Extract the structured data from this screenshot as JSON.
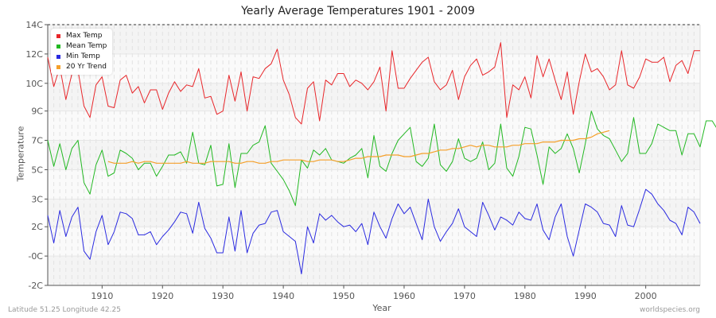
{
  "chart_data": {
    "type": "line",
    "title": "Yearly Average Temperatures 1901 - 2009",
    "xlabel": "Year",
    "ylabel": "Temperature",
    "x_range": [
      1901,
      2009
    ],
    "ylim": [
      -2,
      14
    ],
    "x_ticks": [
      1910,
      1920,
      1930,
      1940,
      1950,
      1960,
      1970,
      1980,
      1990,
      2000
    ],
    "y_ticks": [
      {
        "label": "-2C",
        "value": -2
      },
      {
        "label": "-0C",
        "value": -0.2
      },
      {
        "label": "2C",
        "value": 1.6
      },
      {
        "label": "3C",
        "value": 3.3
      },
      {
        "label": "5C",
        "value": 5.1
      },
      {
        "label": "7C",
        "value": 6.9
      },
      {
        "label": "9C",
        "value": 8.7
      },
      {
        "label": "10C",
        "value": 10.4
      },
      {
        "label": "12C",
        "value": 12.2
      },
      {
        "label": "14C",
        "value": 14
      }
    ],
    "grid": true,
    "legend_position": "top-left",
    "series": [
      {
        "name": "Max Temp",
        "color": "#e8262a",
        "start_year": 1901,
        "values": [
          12.0,
          10.2,
          11.4,
          9.4,
          11.0,
          11.2,
          9.0,
          8.3,
          10.3,
          10.8,
          9.0,
          8.9,
          10.6,
          10.9,
          9.8,
          10.2,
          9.2,
          10.0,
          10.0,
          8.8,
          9.8,
          10.5,
          9.9,
          10.3,
          10.2,
          11.3,
          9.5,
          9.6,
          8.5,
          8.7,
          10.9,
          9.3,
          11.1,
          8.7,
          10.8,
          10.7,
          11.3,
          11.6,
          12.5,
          10.6,
          9.7,
          8.3,
          7.9,
          10.1,
          10.5,
          8.1,
          10.6,
          10.3,
          11.0,
          11.0,
          10.2,
          10.6,
          10.4,
          10.0,
          10.5,
          11.4,
          8.7,
          12.4,
          10.1,
          10.1,
          10.7,
          11.2,
          11.7,
          12.0,
          10.5,
          10.0,
          10.3,
          11.2,
          9.4,
          10.8,
          11.5,
          11.9,
          10.9,
          11.1,
          11.4,
          12.9,
          8.3,
          10.3,
          10.0,
          10.8,
          9.5,
          12.1,
          10.8,
          11.9,
          10.6,
          9.4,
          11.1,
          8.5,
          10.5,
          12.2,
          11.1,
          11.3,
          10.8,
          10.0,
          10.3,
          12.4,
          10.3,
          10.1,
          10.8,
          11.9,
          11.7,
          11.7,
          12.0,
          10.5,
          11.5,
          11.8,
          11.0,
          12.4,
          12.4
        ]
      },
      {
        "name": "Mean Temp",
        "color": "#22b822",
        "start_year": 1901,
        "values": [
          6.9,
          5.3,
          6.7,
          5.1,
          6.4,
          6.9,
          4.3,
          3.6,
          5.4,
          6.3,
          4.7,
          4.9,
          6.3,
          6.1,
          5.8,
          5.1,
          5.5,
          5.5,
          4.7,
          5.3,
          6.0,
          6.0,
          6.2,
          5.5,
          7.4,
          5.5,
          5.4,
          6.6,
          4.1,
          4.2,
          6.7,
          4.0,
          6.1,
          6.1,
          6.6,
          6.8,
          7.8,
          5.5,
          5.0,
          4.5,
          3.8,
          2.9,
          5.7,
          5.2,
          6.3,
          6.0,
          6.4,
          5.7,
          5.6,
          5.5,
          5.8,
          6.0,
          6.4,
          4.6,
          7.2,
          5.3,
          5.0,
          6.1,
          6.9,
          7.3,
          7.7,
          5.6,
          5.3,
          5.8,
          7.9,
          5.4,
          5.0,
          5.6,
          7.0,
          5.8,
          5.6,
          5.8,
          6.8,
          5.1,
          5.5,
          7.9,
          5.2,
          4.7,
          5.9,
          7.7,
          7.6,
          6.0,
          4.2,
          6.5,
          6.1,
          6.4,
          7.3,
          6.4,
          4.9,
          6.7,
          8.7,
          7.6,
          7.2,
          7.0,
          6.3,
          5.6,
          6.1,
          8.3,
          6.1,
          6.1,
          6.7,
          7.9,
          7.7,
          7.5,
          7.5,
          6.0,
          7.3,
          7.3,
          6.5,
          8.1,
          8.1,
          7.5
        ]
      },
      {
        "name": "Min Temp",
        "color": "#2a2ae0",
        "start_year": 1901,
        "values": [
          2.3,
          0.6,
          2.6,
          1.0,
          2.2,
          2.8,
          0.1,
          -0.4,
          1.3,
          2.3,
          0.5,
          1.3,
          2.5,
          2.4,
          2.1,
          1.1,
          1.1,
          1.3,
          0.5,
          1.0,
          1.4,
          1.9,
          2.5,
          2.4,
          1.2,
          3.1,
          1.5,
          0.9,
          0.0,
          0.0,
          2.2,
          0.1,
          2.6,
          0.0,
          1.2,
          1.7,
          1.8,
          2.5,
          2.6,
          1.3,
          1.0,
          0.7,
          -1.3,
          1.6,
          0.6,
          2.4,
          2.0,
          2.3,
          1.9,
          1.6,
          1.7,
          1.3,
          1.8,
          0.5,
          2.5,
          1.6,
          0.9,
          2.1,
          3.0,
          2.4,
          2.8,
          1.8,
          0.8,
          3.3,
          1.6,
          0.7,
          1.3,
          1.8,
          2.7,
          1.6,
          1.3,
          1.0,
          3.1,
          2.3,
          1.4,
          2.2,
          2.0,
          1.7,
          2.5,
          2.1,
          2.0,
          3.0,
          1.4,
          0.8,
          2.2,
          3.0,
          1.0,
          -0.2,
          1.4,
          3.0,
          2.8,
          2.5,
          1.8,
          1.7,
          1.0,
          2.9,
          1.7,
          1.6,
          2.7,
          3.9,
          3.6,
          3.0,
          2.6,
          2.0,
          1.8,
          1.1,
          2.8,
          2.5,
          1.8
        ]
      },
      {
        "name": "20 Yr Trend",
        "color": "#f5a02a",
        "start_year": 1911,
        "values": [
          5.6,
          5.5,
          5.5,
          5.5,
          5.6,
          5.5,
          5.6,
          5.6,
          5.5,
          5.5,
          5.5,
          5.5,
          5.5,
          5.6,
          5.5,
          5.5,
          5.5,
          5.6,
          5.6,
          5.6,
          5.6,
          5.5,
          5.5,
          5.6,
          5.6,
          5.5,
          5.5,
          5.6,
          5.6,
          5.7,
          5.7,
          5.7,
          5.7,
          5.6,
          5.6,
          5.7,
          5.7,
          5.7,
          5.6,
          5.6,
          5.7,
          5.8,
          5.8,
          5.9,
          5.9,
          5.9,
          6.0,
          6.0,
          6.0,
          5.9,
          5.9,
          6.0,
          6.1,
          6.1,
          6.2,
          6.3,
          6.3,
          6.4,
          6.4,
          6.5,
          6.6,
          6.5,
          6.6,
          6.6,
          6.5,
          6.5,
          6.5,
          6.6,
          6.6,
          6.7,
          6.7,
          6.7,
          6.8,
          6.8,
          6.8,
          6.9,
          6.9,
          6.9,
          7.0,
          7.0,
          7.1,
          7.3,
          7.4,
          7.5
        ]
      }
    ]
  },
  "header": {
    "title": "Yearly Average Temperatures 1901 - 2009"
  },
  "legend": {
    "items": [
      {
        "label": "Max Temp",
        "color": "#e8262a"
      },
      {
        "label": "Mean Temp",
        "color": "#22b822"
      },
      {
        "label": "Min Temp",
        "color": "#2a2ae0"
      },
      {
        "label": "20 Yr Trend",
        "color": "#f5a02a"
      }
    ]
  },
  "axes": {
    "x_title": "Year",
    "y_title": "Temperature"
  },
  "footer": {
    "location": "Latitude 51.25 Longitude 42.25",
    "source": "worldspecies.org"
  }
}
